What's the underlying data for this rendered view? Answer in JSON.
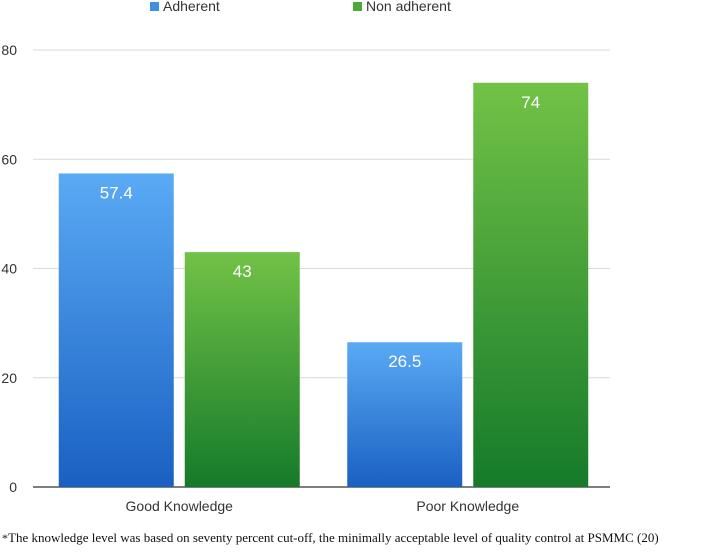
{
  "chart_data": {
    "type": "bar",
    "categories": [
      "Good Knowledge",
      "Poor Knowledge"
    ],
    "series": [
      {
        "name": "Adherent",
        "values": [
          57.4,
          26.5
        ],
        "labels": [
          "57.4",
          "26.5"
        ],
        "color_top": "#5aaaf5",
        "color_bottom": "#1a60c2"
      },
      {
        "name": "Non adherent",
        "values": [
          43,
          74
        ],
        "labels": [
          "43",
          "74"
        ],
        "color_top": "#72c246",
        "color_bottom": "#157a2a"
      }
    ],
    "yticks": [
      "0",
      "20",
      "40",
      "60",
      "80"
    ],
    "ylim": [
      0,
      80
    ],
    "title": "",
    "xlabel": "",
    "ylabel": "",
    "legend_position": "top-center",
    "grid": true
  },
  "footnote": {
    "marker": "*",
    "text": "The knowledge level was based on seventy percent cut-off, the minimally acceptable level of quality control at PSMMC (20)"
  }
}
